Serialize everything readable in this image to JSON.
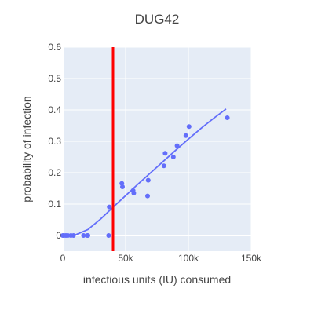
{
  "chart_data": {
    "type": "scatter",
    "title": "DUG42",
    "xlabel": "infectious units (IU) consumed",
    "ylabel": "probability of infection",
    "xlim": [
      0,
      150000
    ],
    "ylim": [
      -0.05,
      0.6
    ],
    "x_ticks": [
      {
        "value": 0,
        "label": "0"
      },
      {
        "value": 50000,
        "label": "50k"
      },
      {
        "value": 100000,
        "label": "100k"
      },
      {
        "value": 150000,
        "label": "150k"
      }
    ],
    "y_ticks": [
      {
        "value": 0,
        "label": "0"
      },
      {
        "value": 0.1,
        "label": "0.1"
      },
      {
        "value": 0.2,
        "label": "0.2"
      },
      {
        "value": 0.3,
        "label": "0.3"
      },
      {
        "value": 0.4,
        "label": "0.4"
      },
      {
        "value": 0.5,
        "label": "0.5"
      },
      {
        "value": 0.6,
        "label": "0.6"
      }
    ],
    "grid": true,
    "plot_background": "#e5ecf6",
    "series": [
      {
        "type": "scatter",
        "color": "#636efa",
        "x": [
          0,
          1000,
          2500,
          4000,
          6500,
          8500,
          16500,
          19500,
          20000,
          36500,
          37000,
          47000,
          47500,
          56000,
          56500,
          67500,
          68000,
          80500,
          81500,
          88000,
          91000,
          98000,
          100500,
          131000
        ],
        "y": [
          0,
          0,
          0,
          0,
          0,
          0,
          0,
          0,
          0,
          0,
          0.091,
          0.166,
          0.155,
          0.143,
          0.135,
          0.126,
          0.176,
          0.222,
          0.262,
          0.25,
          0.286,
          0.318,
          0.347,
          0.375
        ]
      },
      {
        "type": "line",
        "color": "#636efa",
        "x": [
          0,
          10000,
          20000,
          30000,
          40000,
          50000,
          60000,
          70000,
          80000,
          90000,
          100000,
          110000,
          120000,
          130000
        ],
        "y": [
          0,
          0.002,
          0.019,
          0.052,
          0.09,
          0.127,
          0.164,
          0.2,
          0.236,
          0.272,
          0.307,
          0.341,
          0.373,
          0.403
        ]
      }
    ],
    "vertical_line": {
      "x": 40000,
      "color": "#ff0000"
    }
  }
}
